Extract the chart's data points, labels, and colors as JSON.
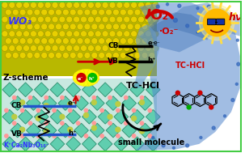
{
  "background_color": "#ffffff",
  "border_color": "#44cc44",
  "wo3_label": "WO₃",
  "wo3_label_color": "#3333ff",
  "knb_label": "K⁺Ca₂Nb₃O₁₀⁻",
  "knb_label_color": "#3333ff",
  "z_scheme_label": "Z-scheme",
  "cb_label": "CB",
  "vb_label": "VB",
  "o2_label": "O₂",
  "o2rad_label": "·O₂⁻",
  "hv_label": "hν",
  "tchcl_label": "TC-HCl",
  "small_mol_label": "small molecule",
  "wo3_bg": "#c8c000",
  "wo3_atom": "#e8d000",
  "wo3_atom_edge": "#a09000",
  "knb_bg": "#b8e8d8",
  "knb_crystal": "#55ccaa",
  "knb_crystal_edge": "#228866",
  "knb_atom_pink": "#ff9999",
  "knb_atom_yellow": "#ddcc00",
  "water_main": "#5599dd",
  "water_light": "#aaccee",
  "sun_body": "#ffbb00",
  "sun_ray": "#ffdd44",
  "sun_glass": "#1133aa",
  "arrow_red": "#cc0000",
  "arrow_black": "#111111",
  "line_black": "#111111",
  "starburst": "#ffff00",
  "electron_red": "#cc0000",
  "hole_green": "#00bb00",
  "text_red": "#cc0000",
  "text_black": "#111111"
}
